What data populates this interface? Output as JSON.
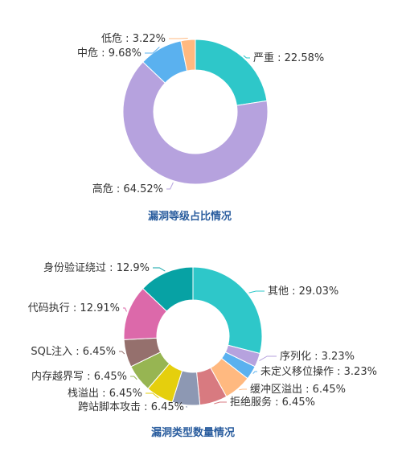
{
  "chart_data": [
    {
      "type": "pie",
      "style": "donut",
      "title": "漏洞等级占比情况",
      "slices": [
        {
          "name": "严重",
          "value": 22.58,
          "label": "严重 : 22.58%",
          "color": "#2ec7c9"
        },
        {
          "name": "高危",
          "value": 64.52,
          "label": "高危 : 64.52%",
          "color": "#b6a2de"
        },
        {
          "name": "中危",
          "value": 9.68,
          "label": "中危 : 9.68%",
          "color": "#5ab1ef"
        },
        {
          "name": "低危",
          "value": 3.22,
          "label": "低危 : 3.22%",
          "color": "#ffb980"
        }
      ]
    },
    {
      "type": "pie",
      "style": "donut",
      "title": "漏洞类型数量情况",
      "slices": [
        {
          "name": "其他",
          "value": 29.03,
          "label": "其他 : 29.03%",
          "color": "#2ec7c9"
        },
        {
          "name": "序列化",
          "value": 3.23,
          "label": "序列化 : 3.23%",
          "color": "#b6a2de"
        },
        {
          "name": "未定义移位操作",
          "value": 3.23,
          "label": "未定义移位操作 : 3.23%",
          "color": "#5ab1ef"
        },
        {
          "name": "缓冲区溢出",
          "value": 6.45,
          "label": "缓冲区溢出 : 6.45%",
          "color": "#ffb980"
        },
        {
          "name": "拒绝服务",
          "value": 6.45,
          "label": "拒绝服务 : 6.45%",
          "color": "#d87a80"
        },
        {
          "name": "跨站脚本攻击",
          "value": 6.45,
          "label": "跨站脚本攻击 : 6.45%",
          "color": "#8d98b3"
        },
        {
          "name": "栈溢出",
          "value": 6.45,
          "label": "栈溢出 : 6.45%",
          "color": "#e5cf0d"
        },
        {
          "name": "内存越界写",
          "value": 6.45,
          "label": "内存越界写 : 6.45%",
          "color": "#97b552"
        },
        {
          "name": "SQL注入",
          "value": 6.45,
          "label": "SQL注入 : 6.45%",
          "color": "#95706d"
        },
        {
          "name": "代码执行",
          "value": 12.91,
          "label": "代码执行 : 12.91%",
          "color": "#dc69aa"
        },
        {
          "name": "身份验证绕过",
          "value": 12.9,
          "label": "身份验证绕过 : 12.9%",
          "color": "#07a2a4"
        }
      ]
    }
  ]
}
